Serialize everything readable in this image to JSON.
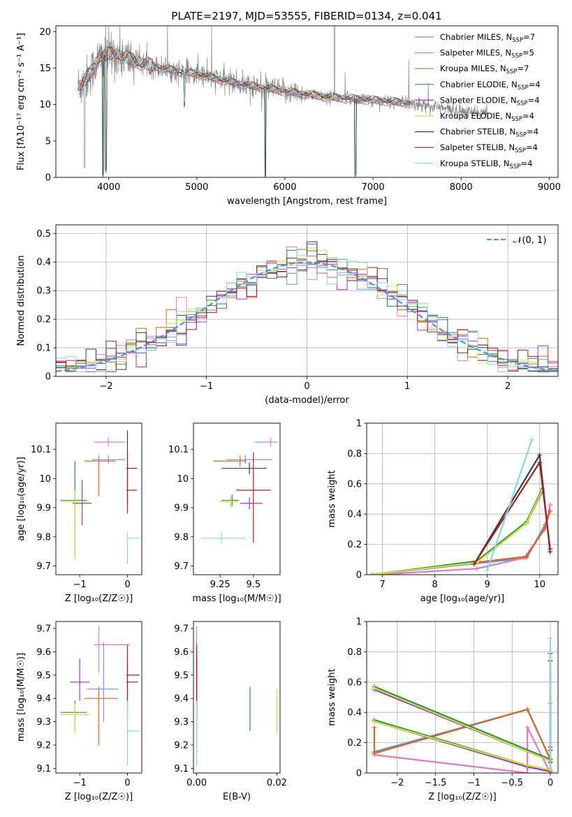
{
  "colors": {
    "chabrier_miles": "#6495ed",
    "salpeter_miles": "#e377c2",
    "kroupa_miles": "#d2691e",
    "chabrier_elodie": "#2e8b57",
    "salpeter_elodie": "#9932cc",
    "kroupa_elodie": "#c8e632",
    "chabrier_stelib": "#3c3c3c",
    "salpeter_stelib": "#a31e1e",
    "kroupa_stelib": "#85d8dc",
    "normal": "#5b8fd6"
  },
  "chart_data": [
    {
      "id": "spectrum",
      "type": "line",
      "title": "PLATE=2197, MJD=53555, FIBERID=0134, z=0.041",
      "xlabel": "wavelength [Angstrom, rest frame]",
      "ylabel": "Flux [fλ10⁻¹⁷ erg cm⁻² s⁻¹ A⁻¹]",
      "xlim": [
        3400,
        9100
      ],
      "ylim": [
        0,
        20.8
      ],
      "xticks": [
        4000,
        5000,
        6000,
        7000,
        8000,
        9000
      ],
      "yticks": [
        0,
        5,
        10,
        15,
        20
      ],
      "grid": false,
      "legend_position": "upper-right",
      "legend": [
        {
          "label": "Chabrier MILES, N",
          "sub": "SSP",
          "suffix": "=7",
          "color_key": "chabrier_miles"
        },
        {
          "label": "Salpeter MILES, N",
          "sub": "SSP",
          "suffix": "=5",
          "color_key": "salpeter_miles"
        },
        {
          "label": "Kroupa MILES, N",
          "sub": "SSP",
          "suffix": "=7",
          "color_key": "kroupa_miles"
        },
        {
          "label": "Chabrier ELODIE, N",
          "sub": "SSP",
          "suffix": "=4",
          "color_key": "chabrier_elodie"
        },
        {
          "label": "Salpeter ELODIE, N",
          "sub": "SSP",
          "suffix": "=4",
          "color_key": "salpeter_elodie"
        },
        {
          "label": "Kroupa ELODIE, N",
          "sub": "SSP",
          "suffix": "=4",
          "color_key": "kroupa_elodie"
        },
        {
          "label": "Chabrier STELIB, N",
          "sub": "SSP",
          "suffix": "=4",
          "color_key": "chabrier_stelib"
        },
        {
          "label": "Salpeter STELIB, N",
          "sub": "SSP",
          "suffix": "=4",
          "color_key": "salpeter_stelib"
        },
        {
          "label": "Kroupa STELIB, N",
          "sub": "SSP",
          "suffix": "=4",
          "color_key": "kroupa_stelib"
        }
      ],
      "continuum": [
        [
          3650,
          12.5
        ],
        [
          3700,
          12.8
        ],
        [
          3800,
          14.5
        ],
        [
          3900,
          16.5
        ],
        [
          4000,
          17.0
        ],
        [
          4100,
          16.8
        ],
        [
          4300,
          16.0
        ],
        [
          4500,
          15.3
        ],
        [
          4800,
          14.5
        ],
        [
          5000,
          14.2
        ],
        [
          5200,
          13.6
        ],
        [
          5500,
          12.8
        ],
        [
          6000,
          11.8
        ],
        [
          6500,
          11.0
        ],
        [
          7000,
          10.6
        ],
        [
          7400,
          10.2
        ],
        [
          7700,
          9.7
        ],
        [
          8000,
          9.0
        ],
        [
          8300,
          8.8
        ]
      ],
      "data_range": [
        3650,
        8300
      ],
      "model_range": [
        3650,
        7430
      ],
      "model_dips": [
        [
          3933,
          0.3
        ],
        [
          3968,
          1.0
        ],
        [
          4861,
          10.0
        ],
        [
          5776,
          0.1
        ],
        [
          6800,
          0.3
        ]
      ]
    },
    {
      "id": "residuals",
      "type": "histogram",
      "xlabel": "(data-model)/error",
      "ylabel": "Normed distribution",
      "xlim": [
        -2.5,
        2.5
      ],
      "ylim": [
        0,
        0.53
      ],
      "xticks": [
        -2,
        -1,
        0,
        1,
        2
      ],
      "yticks": [
        0.0,
        0.1,
        0.2,
        0.3,
        0.4,
        0.5
      ],
      "grid": true,
      "legend_position": "upper-right",
      "legend": [
        {
          "label": "𝒩(0, 1)",
          "color_key": "normal"
        }
      ],
      "bin_width": 0.1,
      "normal_mean": 0,
      "normal_sigma": 1
    },
    {
      "id": "age_vs_Z",
      "type": "errorbar",
      "xlabel": "Z [log₁₀(Z/Z☉)]",
      "ylabel": "age  [log₁₀(age/yr)]",
      "xlim": [
        -1.5,
        0.3
      ],
      "ylim": [
        9.67,
        10.19
      ],
      "xticks": [
        -1,
        0
      ],
      "yticks": [
        9.7,
        9.8,
        9.9,
        10.0,
        10.1
      ],
      "grid": false,
      "points": [
        {
          "key": "chabrier_miles",
          "x": -0.4,
          "xerr": [
            0.35,
            0.35
          ],
          "y": 10.065,
          "yerr": [
            0.015,
            0.015
          ]
        },
        {
          "key": "salpeter_miles",
          "x": -0.4,
          "xerr": [
            0.3,
            0.35
          ],
          "y": 10.125,
          "yerr": [
            0.015,
            0.015
          ]
        },
        {
          "key": "kroupa_miles",
          "x": -0.6,
          "xerr": [
            0.3,
            0.35
          ],
          "y": 10.06,
          "yerr": [
            0.12,
            0.02
          ]
        },
        {
          "key": "chabrier_elodie",
          "x": -1.1,
          "xerr": [
            0.3,
            0.25
          ],
          "y": 9.925,
          "yerr": [
            0.19,
            0.135
          ]
        },
        {
          "key": "salpeter_elodie",
          "x": -0.95,
          "xerr": [
            0.2,
            0.2
          ],
          "y": 9.915,
          "yerr": [
            0.075,
            0.08
          ]
        },
        {
          "key": "kroupa_elodie",
          "x": -1.1,
          "xerr": [
            0.3,
            0.3
          ],
          "y": 9.92,
          "yerr": [
            0.2,
            0.04
          ]
        },
        {
          "key": "chabrier_stelib",
          "x": 0.0,
          "xerr": [
            0.02,
            0.2
          ],
          "y": 10.035,
          "yerr": [
            0.12,
            0.13
          ]
        },
        {
          "key": "salpeter_stelib",
          "x": 0.0,
          "xerr": [
            0.02,
            0.2
          ],
          "y": 9.96,
          "yerr": [
            0.08,
            0.13
          ]
        },
        {
          "key": "kroupa_stelib",
          "x": 0.0,
          "xerr": [
            0.02,
            0.25
          ],
          "y": 9.795,
          "yerr": [
            0.09,
            0.02
          ]
        }
      ]
    },
    {
      "id": "age_vs_mass",
      "type": "errorbar",
      "xlabel": "mass [log₁₀(M/M☉)]",
      "ylabel": "",
      "xlim": [
        9.05,
        9.7
      ],
      "ylim": [
        9.67,
        10.19
      ],
      "xticks": [
        9.25,
        9.5
      ],
      "yticks": [
        9.7,
        9.8,
        9.9,
        10.0,
        10.1
      ],
      "grid": false,
      "points": [
        {
          "key": "chabrier_miles",
          "x": 9.44,
          "xerr": [
            0.14,
            0.2
          ],
          "y": 10.065,
          "yerr": [
            0.015,
            0.015
          ]
        },
        {
          "key": "salpeter_miles",
          "x": 9.63,
          "xerr": [
            0.12,
            0.05
          ],
          "y": 10.125,
          "yerr": [
            0.015,
            0.015
          ]
        },
        {
          "key": "kroupa_miles",
          "x": 9.4,
          "xerr": [
            0.2,
            0.05
          ],
          "y": 10.06,
          "yerr": [
            0.02,
            0.02
          ]
        },
        {
          "key": "chabrier_elodie",
          "x": 9.34,
          "xerr": [
            0.08,
            0.05
          ],
          "y": 9.925,
          "yerr": [
            0.02,
            0.02
          ]
        },
        {
          "key": "salpeter_elodie",
          "x": 9.47,
          "xerr": [
            0.07,
            0.1
          ],
          "y": 9.915,
          "yerr": [
            0.02,
            0.02
          ]
        },
        {
          "key": "kroupa_elodie",
          "x": 9.33,
          "xerr": [
            0.08,
            0.05
          ],
          "y": 9.92,
          "yerr": [
            0.02,
            0.02
          ]
        },
        {
          "key": "chabrier_stelib",
          "x": 9.47,
          "xerr": [
            0.21,
            0.13
          ],
          "y": 10.035,
          "yerr": [
            0.02,
            0.02
          ]
        },
        {
          "key": "salpeter_stelib",
          "x": 9.5,
          "xerr": [
            0.13,
            0.13
          ],
          "y": 9.96,
          "yerr": [
            0.18,
            0.13
          ]
        },
        {
          "key": "kroupa_stelib",
          "x": 9.26,
          "xerr": [
            0.15,
            0.18
          ],
          "y": 9.795,
          "yerr": [
            0.02,
            0.02
          ]
        }
      ]
    },
    {
      "id": "weight_vs_age",
      "type": "line",
      "xlabel": "age  [log₁₀(age/yr)]",
      "ylabel": "mass weight",
      "xlim": [
        6.7,
        10.35
      ],
      "ylim": [
        0,
        1.0
      ],
      "xticks": [
        7,
        8,
        9,
        10
      ],
      "yticks": [
        0.0,
        0.2,
        0.4,
        0.6,
        0.8,
        1.0
      ],
      "grid": true,
      "series": [
        {
          "key": "chabrier_miles",
          "x": [
            6.8,
            9.75,
            10.1,
            10.2
          ],
          "y": [
            0.0,
            0.11,
            0.33,
            0.42
          ]
        },
        {
          "key": "salpeter_miles",
          "x": [
            6.9,
            8.8,
            9.7,
            10.1,
            10.2
          ],
          "y": [
            0.0,
            0.04,
            0.11,
            0.3,
            0.46
          ]
        },
        {
          "key": "kroupa_miles",
          "x": [
            6.8,
            9.75,
            10.1,
            10.2
          ],
          "y": [
            0.0,
            0.12,
            0.31,
            0.42
          ]
        },
        {
          "key": "chabrier_elodie",
          "x": [
            6.8,
            8.8,
            9.75,
            10.05
          ],
          "y": [
            0.0,
            0.09,
            0.35,
            0.57
          ]
        },
        {
          "key": "salpeter_elodie",
          "x": [
            6.8,
            8.8,
            9.75,
            10.05
          ],
          "y": [
            0.0,
            0.08,
            0.34,
            0.55
          ]
        },
        {
          "key": "kroupa_elodie",
          "x": [
            6.8,
            8.8,
            9.75,
            10.05
          ],
          "y": [
            0.0,
            0.08,
            0.34,
            0.56
          ]
        },
        {
          "key": "chabrier_stelib",
          "x": [
            8.75,
            10.0,
            10.2
          ],
          "y": [
            0.07,
            0.79,
            0.15
          ]
        },
        {
          "key": "salpeter_stelib",
          "x": [
            8.75,
            10.0,
            10.2
          ],
          "y": [
            0.07,
            0.74,
            0.17
          ]
        },
        {
          "key": "kroupa_stelib",
          "x": [
            9.0,
            9.85
          ],
          "y": [
            0.03,
            0.89
          ]
        }
      ]
    },
    {
      "id": "mass_vs_Z",
      "type": "errorbar",
      "xlabel": "Z [log₁₀(Z/Z☉)]",
      "ylabel": "mass [log₁₀(M/M☉)]",
      "xlim": [
        -1.5,
        0.3
      ],
      "ylim": [
        9.08,
        9.73
      ],
      "xticks": [
        -1,
        0
      ],
      "yticks": [
        9.1,
        9.2,
        9.3,
        9.4,
        9.5,
        9.6,
        9.7
      ],
      "grid": false,
      "points": [
        {
          "key": "chabrier_miles",
          "x": -0.5,
          "xerr": [
            0.35,
            0.3
          ],
          "y": 9.44,
          "yerr": [
            0.14,
            0.2
          ]
        },
        {
          "key": "salpeter_miles",
          "x": -0.6,
          "xerr": [
            0.1,
            0.65
          ],
          "y": 9.63,
          "yerr": [
            0.12,
            0.08
          ]
        },
        {
          "key": "kroupa_miles",
          "x": -0.6,
          "xerr": [
            0.3,
            0.4
          ],
          "y": 9.4,
          "yerr": [
            0.2,
            0.05
          ]
        },
        {
          "key": "chabrier_elodie",
          "x": -1.1,
          "xerr": [
            0.3,
            0.25
          ],
          "y": 9.34,
          "yerr": [
            0.08,
            0.05
          ]
        },
        {
          "key": "salpeter_elodie",
          "x": -1.0,
          "xerr": [
            0.2,
            0.2
          ],
          "y": 9.47,
          "yerr": [
            0.08,
            0.1
          ]
        },
        {
          "key": "kroupa_elodie",
          "x": -1.1,
          "xerr": [
            0.3,
            0.3
          ],
          "y": 9.33,
          "yerr": [
            0.08,
            0.05
          ]
        },
        {
          "key": "chabrier_stelib",
          "x": 0.0,
          "xerr": [
            0.02,
            0.22
          ],
          "y": 9.47,
          "yerr": [
            0.15,
            0.1
          ]
        },
        {
          "key": "salpeter_stelib",
          "x": 0.0,
          "xerr": [
            0.02,
            0.25
          ],
          "y": 9.5,
          "yerr": [
            0.13,
            0.13
          ]
        },
        {
          "key": "kroupa_stelib",
          "x": 0.0,
          "xerr": [
            0.02,
            0.25
          ],
          "y": 9.26,
          "yerr": [
            0.15,
            0.13
          ]
        }
      ]
    },
    {
      "id": "mass_vs_ebv",
      "type": "errorbar",
      "xlabel": "E(B-V)",
      "ylabel": "",
      "xlim": [
        -0.0008,
        0.0208
      ],
      "ylim": [
        9.08,
        9.73
      ],
      "xticks": [
        0.0,
        0.02
      ],
      "xtick_labels": [
        "0.00",
        "0.02"
      ],
      "yticks": [
        9.1,
        9.2,
        9.3,
        9.4,
        9.5,
        9.6,
        9.7
      ],
      "grid": false,
      "points": [
        {
          "key": "chabrier_miles",
          "x": 0.0,
          "xerr": [
            0,
            0
          ],
          "y": 9.44,
          "yerr": [
            0.14,
            0.2
          ]
        },
        {
          "key": "salpeter_miles",
          "x": 0.0,
          "xerr": [
            0,
            0
          ],
          "y": 9.63,
          "yerr": [
            0.12,
            0.08
          ]
        },
        {
          "key": "kroupa_miles",
          "x": 0.0,
          "xerr": [
            0,
            0
          ],
          "y": 9.4,
          "yerr": [
            0.2,
            0.05
          ]
        },
        {
          "key": "chabrier_elodie",
          "x": 0.0133,
          "xerr": [
            0,
            0
          ],
          "y": 9.34,
          "yerr": [
            0.08,
            0.11
          ]
        },
        {
          "key": "salpeter_elodie",
          "x": 0.0,
          "xerr": [
            0,
            0
          ],
          "y": 9.47,
          "yerr": [
            0.08,
            0.1
          ]
        },
        {
          "key": "kroupa_elodie",
          "x": 0.02,
          "xerr": [
            0,
            0
          ],
          "y": 9.33,
          "yerr": [
            0.08,
            0.11
          ]
        },
        {
          "key": "chabrier_stelib",
          "x": 0.0,
          "xerr": [
            0,
            0
          ],
          "y": 9.47,
          "yerr": [
            0.15,
            0.1
          ]
        },
        {
          "key": "salpeter_stelib",
          "x": 0.0,
          "xerr": [
            0,
            0
          ],
          "y": 9.5,
          "yerr": [
            0.13,
            0.13
          ]
        },
        {
          "key": "kroupa_stelib",
          "x": 0.0,
          "xerr": [
            0,
            0
          ],
          "y": 9.26,
          "yerr": [
            0.15,
            0.13
          ]
        }
      ]
    },
    {
      "id": "weight_vs_Z",
      "type": "line",
      "xlabel": "Z [log₁₀(Z/Z☉)]",
      "ylabel": "mass weight",
      "xlim": [
        -2.4,
        0.1
      ],
      "ylim": [
        0,
        1.0
      ],
      "xticks": [
        -2.0,
        -1.5,
        -1.0,
        -0.5,
        0.0
      ],
      "yticks": [
        0.0,
        0.2,
        0.4,
        0.6,
        0.8,
        1.0
      ],
      "grid": true,
      "series": [
        {
          "key": "chabrier_miles",
          "x": [
            -2.3,
            -0.3,
            0.0,
            0.0
          ],
          "y": [
            0.14,
            0.42,
            0.09,
            0.0
          ]
        },
        {
          "key": "salpeter_miles",
          "x": [
            -2.3,
            -0.3,
            -0.3,
            0.0,
            0.0
          ],
          "y": [
            0.12,
            0.0,
            0.3,
            0.0,
            0.46
          ]
        },
        {
          "key": "kroupa_miles",
          "x": [
            -2.3,
            -2.3,
            -0.3,
            0.0,
            0.0
          ],
          "y": [
            0.3,
            0.13,
            0.42,
            0.09,
            0.0
          ]
        },
        {
          "key": "chabrier_elodie",
          "x": [
            -2.3,
            0.0,
            0.0,
            -0.3,
            -2.3
          ],
          "y": [
            0.57,
            0.09,
            0.02,
            0.05,
            0.35
          ]
        },
        {
          "key": "salpeter_elodie",
          "x": [
            -2.3,
            0.0,
            0.0,
            -0.3,
            -2.3
          ],
          "y": [
            0.55,
            0.08,
            0.01,
            0.04,
            0.34
          ]
        },
        {
          "key": "kroupa_elodie",
          "x": [
            -2.3,
            0.0,
            0.0,
            -0.3,
            -2.3
          ],
          "y": [
            0.56,
            0.08,
            0.02,
            0.05,
            0.34
          ]
        },
        {
          "key": "chabrier_stelib",
          "x": [
            0.0,
            0.0,
            0.0
          ],
          "y": [
            0.07,
            0.79,
            0.15
          ]
        },
        {
          "key": "salpeter_stelib",
          "x": [
            0.0,
            0.0,
            0.0
          ],
          "y": [
            0.07,
            0.74,
            0.17
          ]
        },
        {
          "key": "kroupa_stelib",
          "x": [
            0.0,
            0.0
          ],
          "y": [
            0.03,
            0.89
          ]
        }
      ]
    }
  ]
}
